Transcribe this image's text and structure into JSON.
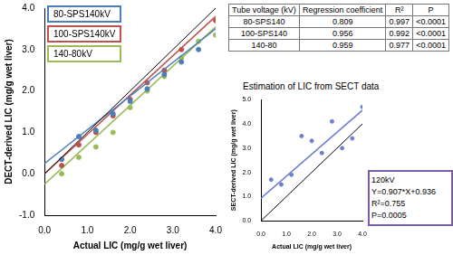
{
  "chart_data": [
    {
      "type": "scatter",
      "x_label": "Actual LIC (mg/g wet liver)",
      "y_label": "DECT-derived LIC (mg/g wet liver)",
      "xlim": [
        0,
        4
      ],
      "xticks": [
        {
          "value": 0,
          "label": "0.0"
        },
        {
          "value": 1,
          "label": "1.0"
        },
        {
          "value": 2,
          "label": "2.0"
        },
        {
          "value": 3,
          "label": "3.0"
        },
        {
          "value": 4,
          "label": "4.0"
        }
      ],
      "ylim": [
        -1,
        4
      ],
      "yticks": [
        {
          "value": -1,
          "label": "-1.0"
        },
        {
          "value": 0,
          "label": "0.0"
        },
        {
          "value": 1,
          "label": "1.0"
        },
        {
          "value": 2,
          "label": "2.0"
        },
        {
          "value": 3,
          "label": "3.0"
        },
        {
          "value": 4,
          "label": "4.0"
        }
      ],
      "grid": false,
      "legend": "upper left",
      "series": [
        {
          "name": "80-SPS140kV",
          "color": "#4a7ebb",
          "marker": "circle",
          "x": [
            0.4,
            0.8,
            1.2,
            1.6,
            2.0,
            2.4,
            2.8,
            3.2,
            3.6
          ],
          "values": [
            0.35,
            0.9,
            1.05,
            1.45,
            1.75,
            2.05,
            2.4,
            2.7,
            3.0
          ],
          "fit_line": {
            "x": [
              0,
              4
            ],
            "values": [
              0.25,
              3.5
            ],
            "line_style": "solid"
          }
        },
        {
          "name": "100-SPS140kV",
          "color": "#c0504d",
          "marker": "circle",
          "x": [
            0.4,
            0.8,
            1.2,
            1.6,
            2.0,
            2.4,
            2.8,
            3.2,
            4.0
          ],
          "values": [
            0.2,
            0.7,
            1.0,
            1.4,
            1.8,
            2.2,
            2.5,
            3.0,
            3.7
          ],
          "fit_line": {
            "x": [
              0,
              4
            ],
            "values": [
              0.0,
              3.8
            ],
            "line_style": "solid"
          }
        },
        {
          "name": "140-80kV",
          "color": "#9bbb59",
          "marker": "circle",
          "x": [
            0.4,
            0.8,
            1.2,
            1.6,
            2.0,
            2.4,
            2.8,
            3.2,
            3.6,
            4.0
          ],
          "values": [
            0.0,
            0.4,
            0.65,
            1.0,
            1.6,
            2.0,
            2.35,
            2.8,
            3.2,
            3.35
          ],
          "fit_line": {
            "x": [
              0,
              4
            ],
            "values": [
              -0.25,
              3.55
            ],
            "line_style": "solid"
          }
        }
      ],
      "reference_line": {
        "x": [
          0,
          4
        ],
        "values": [
          0,
          4
        ],
        "color": "#000000",
        "line_style": "solid"
      }
    },
    {
      "type": "scatter",
      "title": "Estimation of LIC from SECT data",
      "x_label": "Actual LIC (mg/g wet liver)",
      "y_label": "SECT-derived LIC (mg/g wet liver)",
      "xlim": [
        0,
        4
      ],
      "xticks": [
        {
          "value": 0,
          "label": "0.0"
        },
        {
          "value": 1,
          "label": "1.0"
        },
        {
          "value": 2,
          "label": "2.0"
        },
        {
          "value": 3,
          "label": "3.0"
        },
        {
          "value": 4,
          "label": "4.0"
        }
      ],
      "ylim": [
        0,
        5
      ],
      "yticks": [
        {
          "value": 0,
          "label": "0.0"
        },
        {
          "value": 1,
          "label": "1.0"
        },
        {
          "value": 2,
          "label": "2.0"
        },
        {
          "value": 3,
          "label": "3.0"
        },
        {
          "value": 4,
          "label": "4.0"
        },
        {
          "value": 5,
          "label": "5.0"
        }
      ],
      "grid": false,
      "series": [
        {
          "name": "120kV",
          "color": "#6a7fd0",
          "marker": "circle",
          "x": [
            0.4,
            0.8,
            1.2,
            1.6,
            2.0,
            2.4,
            2.8,
            3.2,
            3.6,
            4.0
          ],
          "values": [
            1.7,
            1.5,
            1.9,
            3.5,
            3.3,
            2.8,
            4.1,
            3.0,
            3.4,
            4.7
          ],
          "fit_line": {
            "x": [
              0,
              4
            ],
            "values": [
              0.936,
              4.564
            ],
            "line_style": "solid"
          }
        }
      ],
      "reference_line": {
        "x": [
          0,
          4
        ],
        "values": [
          0,
          4
        ],
        "color": "#000000",
        "line_style": "solid"
      },
      "annotation": [
        "120kV",
        "Y=0.907*X+0.936",
        "R²=0.755",
        "P=0.0005"
      ]
    }
  ],
  "table": {
    "columns": [
      "Tube voltage (kV)",
      "Regression coefficient",
      "R²",
      "P"
    ],
    "rows": [
      [
        "80-SPS140",
        0.809,
        0.997,
        "<0.0001"
      ],
      [
        "100-SPS140",
        0.956,
        0.992,
        "<0.0001"
      ],
      [
        "140-80",
        0.959,
        0.977,
        "<0.0001"
      ]
    ]
  }
}
